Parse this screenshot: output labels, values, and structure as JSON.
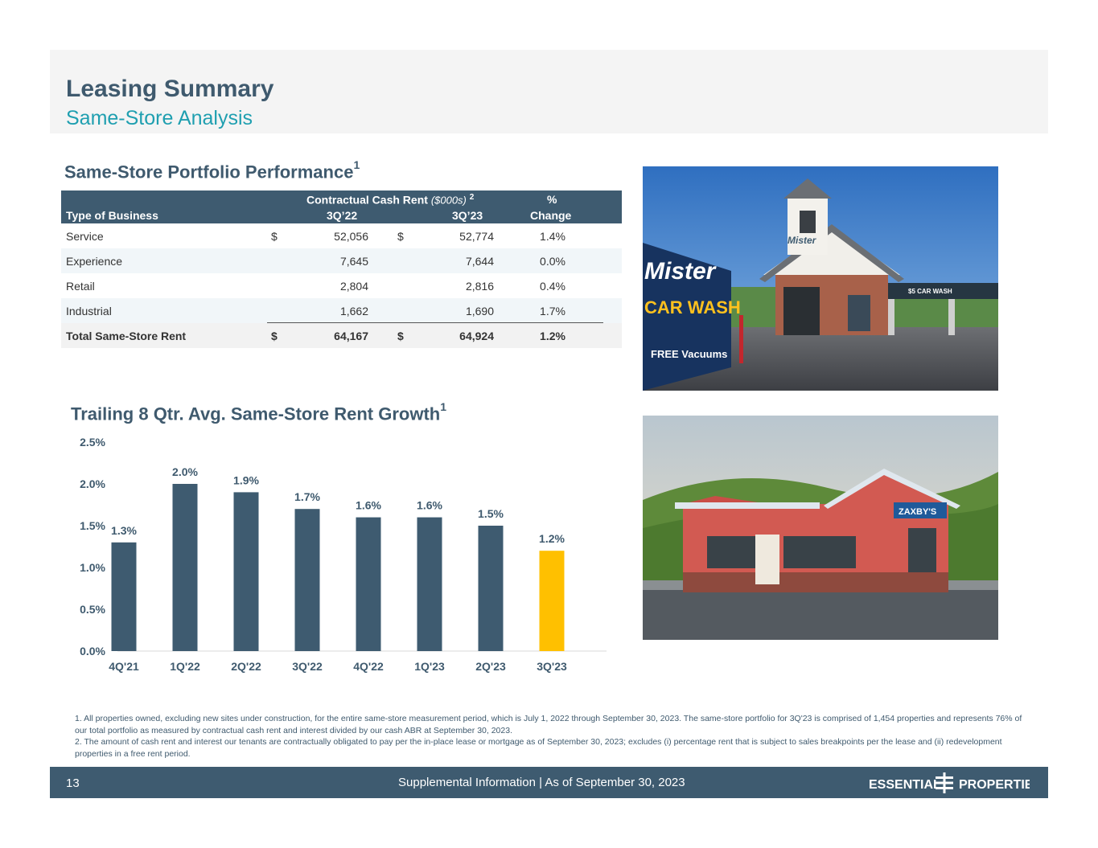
{
  "header": {
    "title": "Leasing Summary",
    "subtitle": "Same-Store Analysis"
  },
  "table_section": {
    "title": "Same-Store Portfolio Performance",
    "title_sup": "1",
    "columns": {
      "type": "Type of Business",
      "group": "Contractual Cash Rent",
      "group_unit": "($000s)",
      "group_sup": "2",
      "q1": "3Q’22",
      "q2": "3Q’23",
      "pct_top": "%",
      "pct_bottom": "Change"
    },
    "rows": [
      {
        "name": "Service",
        "d1": "$",
        "v1": "52,056",
        "d2": "$",
        "v2": "52,774",
        "pct": "1.4%"
      },
      {
        "name": "Experience",
        "d1": "",
        "v1": "7,645",
        "d2": "",
        "v2": "7,644",
        "pct": "0.0%"
      },
      {
        "name": "Retail",
        "d1": "",
        "v1": "2,804",
        "d2": "",
        "v2": "2,816",
        "pct": "0.4%"
      },
      {
        "name": "Industrial",
        "d1": "",
        "v1": "1,662",
        "d2": "",
        "v2": "1,690",
        "pct": "1.7%"
      }
    ],
    "total": {
      "name": "Total Same-Store Rent",
      "d1": "$",
      "v1": "64,167",
      "d2": "$",
      "v2": "64,924",
      "pct": "1.2%"
    }
  },
  "photos": {
    "car_wash": {
      "sign_line1": "Mister",
      "sign_line2": "CAR WASH",
      "sign_line3": "FREE Vacuums",
      "tower_sign": "Mister",
      "side_sign": "$5 CAR WASH"
    },
    "restaurant": {
      "sign": "ZAXBY'S"
    }
  },
  "chart_section": {
    "title": "Trailing 8 Qtr. Avg. Same-Store Rent Growth",
    "title_sup": "1"
  },
  "chart_data": {
    "type": "bar",
    "categories": [
      "4Q'21",
      "1Q'22",
      "2Q'22",
      "3Q'22",
      "4Q'22",
      "1Q'23",
      "2Q'23",
      "3Q'23"
    ],
    "values": [
      1.3,
      2.0,
      1.9,
      1.7,
      1.6,
      1.6,
      1.5,
      1.2
    ],
    "data_labels": [
      "1.3%",
      "2.0%",
      "1.9%",
      "1.7%",
      "1.6%",
      "1.6%",
      "1.5%",
      "1.2%"
    ],
    "y_ticks": [
      0,
      0.5,
      1.0,
      1.5,
      2.0,
      2.5
    ],
    "y_tick_labels": [
      "0.0%",
      "0.5%",
      "1.0%",
      "1.5%",
      "2.0%",
      "2.5%"
    ],
    "ylim": [
      0,
      2.5
    ],
    "grid": false,
    "colors": {
      "bar": "#3e5b70",
      "highlight": "#ffc000"
    },
    "highlight_index": 7
  },
  "footnotes": [
    "1. All properties owned, excluding new sites under construction, for the entire same-store measurement period, which is July 1, 2022 through September 30, 2023. The same-store portfolio for 3Q'23 is comprised of 1,454 properties and represents 76% of our total portfolio as measured by contractual cash rent and interest divided by our cash ABR at September 30, 2023.",
    "2. The amount of cash rent and interest our tenants are contractually obligated to pay per the in-place lease or mortgage as of September 30, 2023; excludes (i) percentage rent that is subject to sales breakpoints per the lease and (ii) redevelopment properties in a free rent period."
  ],
  "footer": {
    "page_number": "13",
    "text": "Supplemental Information |  As of September 30, 2023",
    "logo_left": "ESSENTIAL",
    "logo_right": "PROPERTIES"
  }
}
